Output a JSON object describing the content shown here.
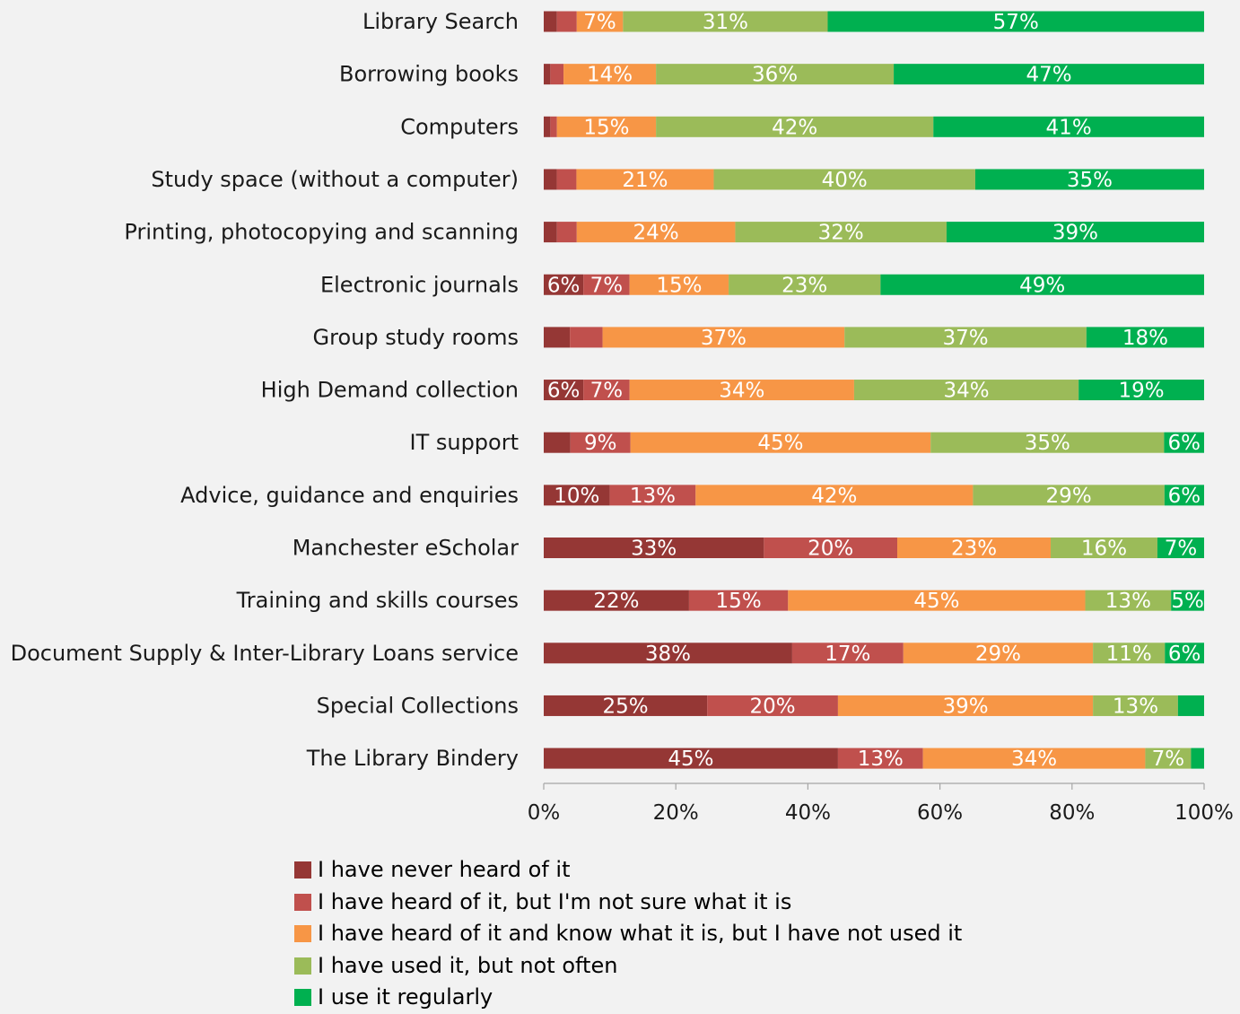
{
  "chart_data": {
    "type": "bar",
    "orientation": "horizontal",
    "stacked": "percent",
    "title": "",
    "xlabel": "",
    "ylabel": "",
    "xlim": [
      0,
      100
    ],
    "x_ticks": [
      "0%",
      "20%",
      "40%",
      "60%",
      "80%",
      "100%"
    ],
    "grid": false,
    "legend_position": "bottom",
    "categories": [
      "Library Search",
      "Borrowing books",
      "Computers",
      "Study space (without a computer)",
      "Printing, photocopying and scanning",
      "Electronic journals",
      "Group study rooms",
      "High Demand collection",
      "IT support",
      "Advice, guidance and enquiries",
      "Manchester eScholar",
      "Training and skills courses",
      "Document Supply & Inter-Library Loans service",
      "Special Collections",
      "The Library Bindery"
    ],
    "series": [
      {
        "name": "I have never heard of it",
        "color": "#953735",
        "values": [
          2,
          1,
          1,
          2,
          2,
          6,
          4,
          6,
          4,
          10,
          33,
          22,
          38,
          25,
          45
        ],
        "labels": [
          "",
          "",
          "",
          "",
          "",
          "6%",
          "",
          "6%",
          "",
          "10%",
          "33%",
          "22%",
          "38%",
          "25%",
          "45%"
        ]
      },
      {
        "name": "I have heard of it, but I'm not sure what it is",
        "color": "#c0504d",
        "values": [
          3,
          2,
          1,
          3,
          3,
          7,
          5,
          7,
          9,
          13,
          20,
          15,
          17,
          20,
          13
        ],
        "labels": [
          "",
          "",
          "",
          "",
          "",
          "7%",
          "",
          "7%",
          "9%",
          "13%",
          "20%",
          "15%",
          "17%",
          "20%",
          "13%"
        ]
      },
      {
        "name": "I have heard of it and know what it is, but I have not used it",
        "color": "#f79646",
        "values": [
          7,
          14,
          15,
          21,
          24,
          15,
          37,
          34,
          45,
          42,
          23,
          45,
          29,
          39,
          34
        ],
        "labels": [
          "7%",
          "14%",
          "15%",
          "21%",
          "24%",
          "15%",
          "37%",
          "34%",
          "45%",
          "42%",
          "23%",
          "45%",
          "29%",
          "39%",
          "34%"
        ]
      },
      {
        "name": "I have used it, but not often",
        "color": "#9bbb59",
        "values": [
          31,
          36,
          42,
          40,
          32,
          23,
          37,
          34,
          35,
          29,
          16,
          13,
          11,
          13,
          7
        ],
        "labels": [
          "31%",
          "36%",
          "42%",
          "40%",
          "32%",
          "23%",
          "37%",
          "34%",
          "35%",
          "29%",
          "16%",
          "13%",
          "11%",
          "13%",
          "7%"
        ]
      },
      {
        "name": "I use it regularly",
        "color": "#00b050",
        "values": [
          57,
          47,
          41,
          35,
          39,
          49,
          18,
          19,
          6,
          6,
          7,
          5,
          6,
          4,
          2
        ],
        "labels": [
          "57%",
          "47%",
          "41%",
          "35%",
          "39%",
          "49%",
          "18%",
          "19%",
          "6%",
          "6%",
          "7%",
          "5%",
          "6%",
          "",
          ""
        ]
      }
    ]
  }
}
